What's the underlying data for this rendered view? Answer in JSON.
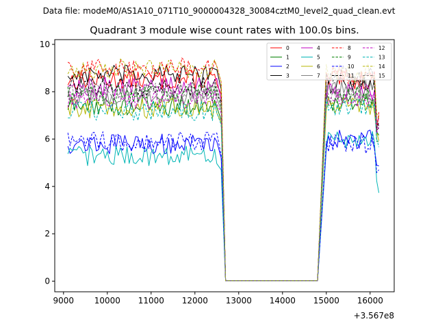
{
  "chart_data": {
    "type": "line",
    "suptitle": "Data file: modeM0/AS1A10_071T10_9000004328_30084cztM0_level2_quad_clean.evt",
    "title": "Quadrant 3 module wise count rates with 100.0s bins.",
    "xlabel": "",
    "ylabel": "",
    "x_offset_label": "+3.567e8",
    "xlim": [
      8800,
      16550
    ],
    "ylim": [
      -0.45,
      10.2
    ],
    "x_ticks": [
      9000,
      10000,
      11000,
      12000,
      13000,
      14000,
      15000,
      16000
    ],
    "x_tick_labels": [
      "9000",
      "10000",
      "11000",
      "12000",
      "13000",
      "14000",
      "15000",
      "16000"
    ],
    "y_ticks": [
      0,
      2,
      4,
      6,
      8,
      10
    ],
    "y_tick_labels": [
      "0",
      "2",
      "4",
      "6",
      "8",
      "10"
    ],
    "x_segments": [
      [
        9100,
        12500
      ],
      [
        15000,
        16200
      ]
    ],
    "drop_x": [
      12600,
      12700
    ],
    "gap_x": [
      12700,
      14800
    ],
    "legend_position": "upper-right",
    "series": [
      {
        "name": "0",
        "color": "#ff0000",
        "dash": false,
        "level_a": 8.5,
        "level_b": 8.5,
        "tail": 6.6
      },
      {
        "name": "1",
        "color": "#008000",
        "dash": false,
        "level_a": 7.4,
        "level_b": 7.6,
        "tail": 6.4
      },
      {
        "name": "2",
        "color": "#0000ff",
        "dash": false,
        "level_a": 5.8,
        "level_b": 6.0,
        "tail": 4.9
      },
      {
        "name": "3",
        "color": "#000000",
        "dash": false,
        "level_a": 8.7,
        "level_b": 8.3,
        "tail": 6.3
      },
      {
        "name": "4",
        "color": "#c000c0",
        "dash": false,
        "level_a": 8.2,
        "level_b": 8.0,
        "tail": 6.5
      },
      {
        "name": "5",
        "color": "#00b5b5",
        "dash": false,
        "level_a": 5.3,
        "level_b": 6.0,
        "tail": 4.0
      },
      {
        "name": "6",
        "color": "#b5b500",
        "dash": false,
        "level_a": 7.3,
        "level_b": 7.4,
        "tail": 6.0
      },
      {
        "name": "7",
        "color": "#808080",
        "dash": false,
        "level_a": 7.8,
        "level_b": 8.1,
        "tail": 6.4
      },
      {
        "name": "8",
        "color": "#ff0000",
        "dash": true,
        "level_a": 9.0,
        "level_b": 8.7,
        "tail": 6.8
      },
      {
        "name": "9",
        "color": "#008000",
        "dash": true,
        "level_a": 7.9,
        "level_b": 7.8,
        "tail": 6.2
      },
      {
        "name": "10",
        "color": "#0000ff",
        "dash": true,
        "level_a": 5.9,
        "level_b": 5.8,
        "tail": 4.8
      },
      {
        "name": "11",
        "color": "#000000",
        "dash": true,
        "level_a": 8.2,
        "level_b": 8.6,
        "tail": 6.6
      },
      {
        "name": "12",
        "color": "#c000c0",
        "dash": true,
        "level_a": 7.7,
        "level_b": 7.7,
        "tail": 6.3
      },
      {
        "name": "13",
        "color": "#00b5b5",
        "dash": true,
        "level_a": 7.2,
        "level_b": 7.4,
        "tail": 6.0
      },
      {
        "name": "14",
        "color": "#b5b500",
        "dash": true,
        "level_a": 9.0,
        "level_b": 8.8,
        "tail": 7.0
      },
      {
        "name": "15",
        "color": "#808080",
        "dash": true,
        "level_a": 8.0,
        "level_b": 7.9,
        "tail": 6.4
      }
    ]
  }
}
